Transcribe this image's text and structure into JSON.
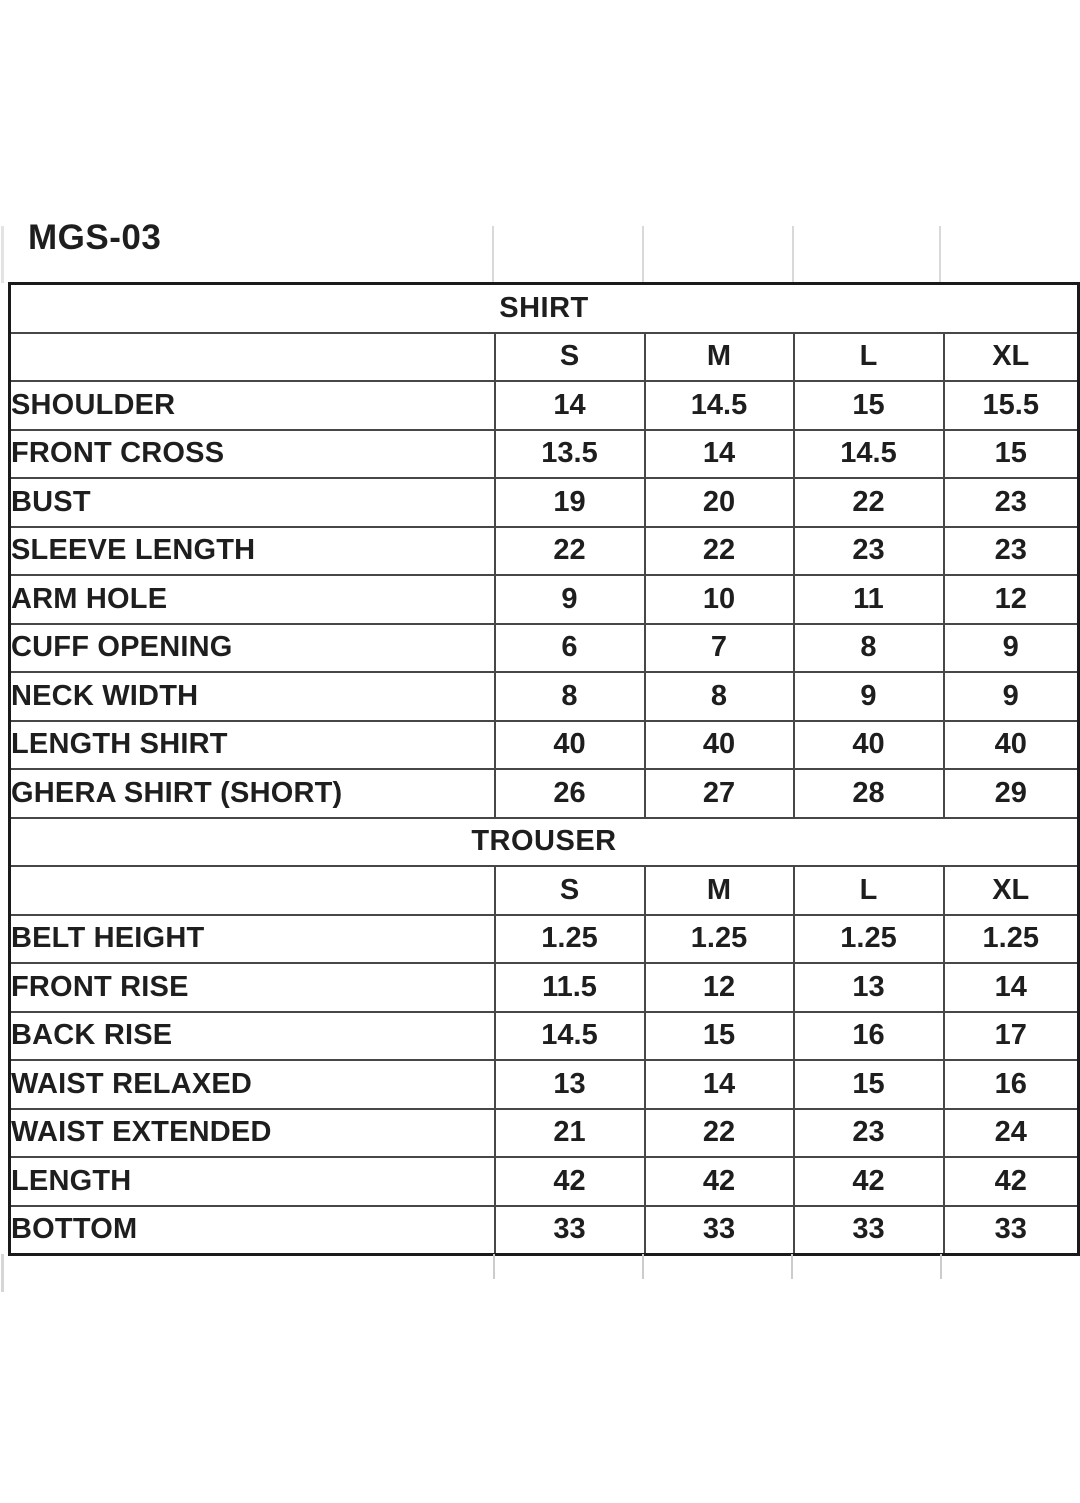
{
  "page": {
    "title": "MGS-03"
  },
  "colors": {
    "text": "#1e1e1e",
    "inner_border": "#474747",
    "outer_border": "#1a1a1a",
    "faint_gridline": "#d9d9d9",
    "background": "#ffffff"
  },
  "table": {
    "sections": [
      {
        "header": "SHIRT",
        "size_columns": [
          "S",
          "M",
          "L",
          "XL"
        ],
        "rows": [
          {
            "label": "SHOULDER",
            "values": [
              "14",
              "14.5",
              "15",
              "15.5"
            ]
          },
          {
            "label": "FRONT CROSS",
            "values": [
              "13.5",
              "14",
              "14.5",
              "15"
            ]
          },
          {
            "label": "BUST",
            "values": [
              "19",
              "20",
              "22",
              "23"
            ]
          },
          {
            "label": "SLEEVE LENGTH",
            "values": [
              "22",
              "22",
              "23",
              "23"
            ]
          },
          {
            "label": "ARM HOLE",
            "values": [
              "9",
              "10",
              "11",
              "12"
            ]
          },
          {
            "label": "CUFF OPENING",
            "values": [
              "6",
              "7",
              "8",
              "9"
            ]
          },
          {
            "label": "NECK WIDTH",
            "values": [
              "8",
              "8",
              "9",
              "9"
            ]
          },
          {
            "label": "LENGTH SHIRT",
            "values": [
              "40",
              "40",
              "40",
              "40"
            ]
          },
          {
            "label": "GHERA SHIRT (SHORT)",
            "values": [
              "26",
              "27",
              "28",
              "29"
            ]
          }
        ]
      },
      {
        "header": "TROUSER",
        "size_columns": [
          "S",
          "M",
          "L",
          "XL"
        ],
        "rows": [
          {
            "label": "BELT HEIGHT",
            "values": [
              "1.25",
              "1.25",
              "1.25",
              "1.25"
            ]
          },
          {
            "label": "FRONT RISE",
            "values": [
              "11.5",
              "12",
              "13",
              "14"
            ]
          },
          {
            "label": "BACK RISE",
            "values": [
              "14.5",
              "15",
              "16",
              "17"
            ]
          },
          {
            "label": "WAIST RELAXED",
            "values": [
              "13",
              "14",
              "15",
              "16"
            ]
          },
          {
            "label": "WAIST EXTENDED",
            "values": [
              "21",
              "22",
              "23",
              "24"
            ]
          },
          {
            "label": "LENGTH",
            "values": [
              "42",
              "42",
              "42",
              "42"
            ]
          },
          {
            "label": "BOTTOM",
            "values": [
              "33",
              "33",
              "33",
              "33"
            ]
          }
        ]
      }
    ]
  }
}
